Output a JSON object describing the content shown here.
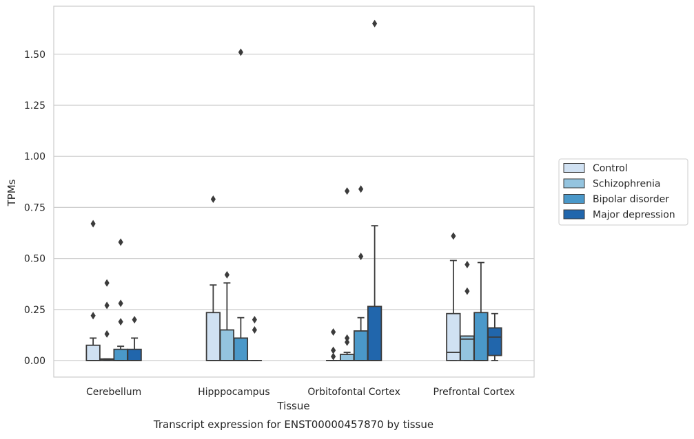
{
  "chart_data": {
    "type": "box",
    "title": "",
    "caption": "Transcript expression for ENST00000457870 by tissue",
    "xlabel": "Tissue",
    "ylabel": "TPMs",
    "ylim": [
      -0.08,
      1.75
    ],
    "yticks": [
      "0.00",
      "0.25",
      "0.50",
      "0.75",
      "1.00",
      "1.25",
      "1.50"
    ],
    "grid": true,
    "legend_position": "right",
    "categories": [
      "Cerebellum",
      "Hipppocampus",
      "Orbitofontal Cortex",
      "Prefrontal Cortex"
    ],
    "series": [
      {
        "name": "Control",
        "color": "#d0e1f2",
        "boxes": [
          {
            "q1": 0.0,
            "median": 0.0,
            "q3": 0.075,
            "whislo": 0.0,
            "whishi": 0.11,
            "fliers": [
              0.22,
              0.67
            ]
          },
          {
            "q1": 0.0,
            "median": 0.0,
            "q3": 0.235,
            "whislo": 0.0,
            "whishi": 0.37,
            "fliers": [
              0.79
            ]
          },
          {
            "q1": 0.0,
            "median": 0.0,
            "q3": 0.0,
            "whislo": 0.0,
            "whishi": 0.0,
            "fliers": [
              0.02,
              0.05,
              0.14
            ]
          },
          {
            "q1": 0.0,
            "median": 0.04,
            "q3": 0.23,
            "whislo": 0.0,
            "whishi": 0.49,
            "fliers": [
              0.61
            ]
          }
        ]
      },
      {
        "name": "Schizophrenia",
        "color": "#94c4df",
        "boxes": [
          {
            "q1": 0.0,
            "median": 0.005,
            "q3": 0.008,
            "whislo": 0.0,
            "whishi": 0.008,
            "fliers": [
              0.13,
              0.27,
              0.38
            ]
          },
          {
            "q1": 0.0,
            "median": 0.0,
            "q3": 0.15,
            "whislo": 0.0,
            "whishi": 0.38,
            "fliers": [
              0.42
            ]
          },
          {
            "q1": 0.0,
            "median": 0.0,
            "q3": 0.03,
            "whislo": 0.0,
            "whishi": 0.04,
            "fliers": [
              0.09,
              0.11,
              0.83
            ]
          },
          {
            "q1": 0.0,
            "median": 0.105,
            "q3": 0.12,
            "whislo": 0.0,
            "whishi": 0.12,
            "fliers": [
              0.34,
              0.47
            ]
          }
        ]
      },
      {
        "name": "Bipolar disorder",
        "color": "#4a98c9",
        "boxes": [
          {
            "q1": 0.0,
            "median": 0.0,
            "q3": 0.055,
            "whislo": 0.0,
            "whishi": 0.07,
            "fliers": [
              0.19,
              0.28,
              0.58
            ]
          },
          {
            "q1": 0.0,
            "median": 0.0,
            "q3": 0.11,
            "whislo": 0.0,
            "whishi": 0.21,
            "fliers": [
              1.51
            ]
          },
          {
            "q1": 0.0,
            "median": 0.0,
            "q3": 0.145,
            "whislo": 0.0,
            "whishi": 0.21,
            "fliers": [
              0.51,
              0.84
            ]
          },
          {
            "q1": 0.0,
            "median": 0.0,
            "q3": 0.235,
            "whislo": 0.0,
            "whishi": 0.48,
            "fliers": []
          }
        ]
      },
      {
        "name": "Major depression",
        "color": "#2166ac",
        "boxes": [
          {
            "q1": 0.0,
            "median": 0.0,
            "q3": 0.055,
            "whislo": 0.0,
            "whishi": 0.11,
            "fliers": [
              0.2
            ]
          },
          {
            "q1": 0.0,
            "median": 0.0,
            "q3": 0.0,
            "whislo": 0.0,
            "whishi": 0.0,
            "fliers": [
              0.15,
              0.2
            ]
          },
          {
            "q1": 0.0,
            "median": 0.0,
            "q3": 0.265,
            "whislo": 0.0,
            "whishi": 0.66,
            "fliers": [
              1.65
            ]
          },
          {
            "q1": 0.025,
            "median": 0.115,
            "q3": 0.16,
            "whislo": 0.0,
            "whishi": 0.23,
            "fliers": []
          }
        ]
      }
    ]
  }
}
